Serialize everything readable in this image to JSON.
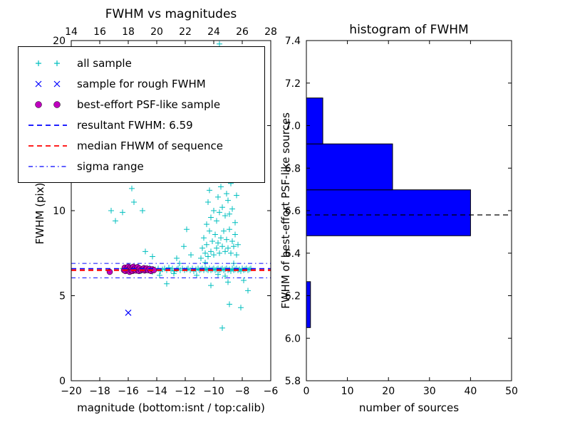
{
  "figure": {
    "background": "#ffffff"
  },
  "legend": {
    "items": [
      {
        "label": "all sample",
        "type": "scatter-plus",
        "color": "#00bfbf"
      },
      {
        "label": "sample for rough FWHM",
        "type": "scatter-x",
        "color": "#0000ff"
      },
      {
        "label": "best-effort PSF-like sample",
        "type": "scatter-circle",
        "color": "#bf00bf"
      },
      {
        "label": "resultant FWHM: 6.59",
        "type": "dashed-line",
        "color": "#0000ff"
      },
      {
        "label": "median FHWM of sequence",
        "type": "dashed-line",
        "color": "#ff0000"
      },
      {
        "label": "sigma range",
        "type": "dashdot-line",
        "color": "#0000ff"
      }
    ]
  },
  "chart_data": [
    {
      "type": "scatter",
      "title": "FWHM vs magnitudes",
      "xlabel": "magnitude (bottom:isnt / top:calib)",
      "ylabel": "FWHM (pix)",
      "xlim": [
        -20,
        -6
      ],
      "ylim": [
        0,
        20
      ],
      "x_tick_values": [
        -20,
        -18,
        -16,
        -14,
        -12,
        -10,
        -8,
        -6
      ],
      "x_tick_labels": [
        "−20",
        "−18",
        "−16",
        "−14",
        "−12",
        "−10",
        "−8",
        "−6"
      ],
      "y_tick_values": [
        0,
        5,
        10,
        15,
        20
      ],
      "y_tick_labels": [
        "0",
        "5",
        "10",
        "15",
        "20"
      ],
      "top_axis": {
        "lim": [
          14,
          28
        ],
        "tick_values": [
          14,
          16,
          18,
          20,
          22,
          24,
          26,
          28
        ],
        "tick_labels": [
          "14",
          "16",
          "18",
          "20",
          "22",
          "24",
          "26",
          "28"
        ]
      },
      "grid": false,
      "legend_position": "upper left",
      "hlines": [
        {
          "name": "median FHWM of sequence",
          "y": 6.5,
          "style": "dashed",
          "color": "#ff0000",
          "width": 2.2
        },
        {
          "name": "resultant FWHM",
          "y": 6.59,
          "style": "dashed",
          "color": "#0000ff",
          "width": 1.6
        },
        {
          "name": "sigma range upper",
          "y": 6.9,
          "style": "dashdot",
          "color": "#0000ff",
          "width": 1
        },
        {
          "name": "sigma range lower",
          "y": 6.05,
          "style": "dashdot",
          "color": "#0000ff",
          "width": 1
        }
      ],
      "series": [
        {
          "name": "all sample",
          "marker": "plus",
          "color": "#00bfbf",
          "points": [
            [
              -16.4,
              6.6
            ],
            [
              -16.2,
              6.5
            ],
            [
              -16.0,
              6.7
            ],
            [
              -15.9,
              6.4
            ],
            [
              -15.7,
              6.6
            ],
            [
              -15.5,
              6.5
            ],
            [
              -15.3,
              6.7
            ],
            [
              -15.1,
              6.45
            ],
            [
              -14.9,
              6.6
            ],
            [
              -14.7,
              6.5
            ],
            [
              -14.5,
              6.65
            ],
            [
              -14.3,
              6.4
            ],
            [
              -14.1,
              6.55
            ],
            [
              -13.9,
              6.6
            ],
            [
              -13.75,
              6.45
            ],
            [
              -13.6,
              6.55
            ],
            [
              -13.45,
              6.6
            ],
            [
              -13.3,
              6.5
            ],
            [
              -13.15,
              6.65
            ],
            [
              -13.0,
              6.5
            ],
            [
              -12.9,
              6.6
            ],
            [
              -12.75,
              6.45
            ],
            [
              -12.6,
              6.55
            ],
            [
              -12.5,
              6.6
            ],
            [
              -12.35,
              6.5
            ],
            [
              -12.2,
              6.6
            ],
            [
              -12.05,
              6.5
            ],
            [
              -11.9,
              6.55
            ],
            [
              -11.8,
              6.6
            ],
            [
              -11.65,
              6.5
            ],
            [
              -11.5,
              6.6
            ],
            [
              -11.4,
              6.45
            ],
            [
              -11.25,
              6.55
            ],
            [
              -11.1,
              6.6
            ],
            [
              -11.0,
              6.5
            ],
            [
              -10.9,
              6.55
            ],
            [
              -10.8,
              6.6
            ],
            [
              -10.7,
              6.5
            ],
            [
              -10.6,
              6.6
            ],
            [
              -10.5,
              6.55
            ],
            [
              -10.4,
              6.5
            ],
            [
              -10.3,
              6.6
            ],
            [
              -10.2,
              6.5
            ],
            [
              -10.1,
              6.55
            ],
            [
              -10.0,
              6.6
            ],
            [
              -9.9,
              6.5
            ],
            [
              -9.8,
              6.55
            ],
            [
              -9.7,
              6.6
            ],
            [
              -9.6,
              6.5
            ],
            [
              -9.5,
              6.55
            ],
            [
              -9.4,
              6.6
            ],
            [
              -9.3,
              6.5
            ],
            [
              -9.2,
              6.55
            ],
            [
              -9.1,
              6.6
            ],
            [
              -9.0,
              6.5
            ],
            [
              -8.9,
              6.55
            ],
            [
              -8.8,
              6.45
            ],
            [
              -8.7,
              6.6
            ],
            [
              -8.6,
              6.5
            ],
            [
              -8.5,
              6.55
            ],
            [
              -8.4,
              6.6
            ],
            [
              -8.3,
              6.5
            ],
            [
              -8.2,
              6.55
            ],
            [
              -8.1,
              6.45
            ],
            [
              -8.0,
              6.6
            ],
            [
              -7.9,
              6.5
            ],
            [
              -7.8,
              6.55
            ],
            [
              -7.7,
              6.6
            ],
            [
              -7.6,
              6.5
            ],
            [
              -7.5,
              6.55
            ],
            [
              -7.4,
              6.6
            ],
            [
              -12.4,
              6.9
            ],
            [
              -11.2,
              6.2
            ],
            [
              -10.6,
              6.95
            ],
            [
              -9.7,
              6.25
            ],
            [
              -8.6,
              6.9
            ],
            [
              -13.8,
              6.2
            ],
            [
              -12.8,
              6.3
            ],
            [
              -9.2,
              6.15
            ],
            [
              -10.9,
              7.2
            ],
            [
              -10.8,
              7.8
            ],
            [
              -10.7,
              8.4
            ],
            [
              -10.6,
              7.5
            ],
            [
              -10.5,
              9.2
            ],
            [
              -10.5,
              8.0
            ],
            [
              -10.4,
              10.5
            ],
            [
              -10.4,
              7.3
            ],
            [
              -10.3,
              8.8
            ],
            [
              -10.3,
              11.2
            ],
            [
              -10.2,
              7.6
            ],
            [
              -10.2,
              9.6
            ],
            [
              -10.1,
              8.2
            ],
            [
              -10.1,
              12.4
            ],
            [
              -10.0,
              7.4
            ],
            [
              -10.0,
              10.0
            ],
            [
              -10.0,
              13.5
            ],
            [
              -9.9,
              8.6
            ],
            [
              -9.9,
              11.8
            ],
            [
              -9.8,
              7.8
            ],
            [
              -9.8,
              9.4
            ],
            [
              -9.8,
              14.6
            ],
            [
              -9.7,
              8.1
            ],
            [
              -9.7,
              10.8
            ],
            [
              -9.7,
              12.9
            ],
            [
              -9.6,
              7.5
            ],
            [
              -9.6,
              9.9
            ],
            [
              -9.6,
              19.8
            ],
            [
              -9.5,
              8.4
            ],
            [
              -9.5,
              11.4
            ],
            [
              -9.5,
              13.8
            ],
            [
              -9.4,
              7.9
            ],
            [
              -9.4,
              10.2
            ],
            [
              -9.4,
              15.6
            ],
            [
              -9.3,
              8.8
            ],
            [
              -9.3,
              12.1
            ],
            [
              -9.2,
              7.6
            ],
            [
              -9.2,
              9.7
            ],
            [
              -9.2,
              14.1
            ],
            [
              -9.1,
              8.3
            ],
            [
              -9.1,
              11.0
            ],
            [
              -9.0,
              7.8
            ],
            [
              -9.0,
              10.6
            ],
            [
              -9.0,
              12.6
            ],
            [
              -8.9,
              8.9
            ],
            [
              -8.9,
              9.8
            ],
            [
              -8.8,
              7.5
            ],
            [
              -8.8,
              11.6
            ],
            [
              -8.7,
              8.2
            ],
            [
              -8.7,
              10.1
            ],
            [
              -8.6,
              7.9
            ],
            [
              -8.6,
              12.2
            ],
            [
              -8.5,
              8.6
            ],
            [
              -8.5,
              9.3
            ],
            [
              -8.4,
              7.4
            ],
            [
              -8.4,
              10.9
            ],
            [
              -8.3,
              8.0
            ],
            [
              -17.2,
              10.0
            ],
            [
              -16.9,
              9.4
            ],
            [
              -16.4,
              9.9
            ],
            [
              -15.75,
              11.3
            ],
            [
              -15.6,
              10.5
            ],
            [
              -15.0,
              10.0
            ],
            [
              -14.8,
              7.6
            ],
            [
              -14.3,
              7.3
            ],
            [
              -12.6,
              7.2
            ],
            [
              -12.1,
              7.9
            ],
            [
              -11.9,
              8.9
            ],
            [
              -11.6,
              7.4
            ],
            [
              -16.0,
              12.6
            ],
            [
              -15.6,
              13.4
            ],
            [
              -9.4,
              3.1
            ],
            [
              -8.9,
              4.5
            ],
            [
              -8.1,
              4.3
            ],
            [
              -13.3,
              5.7
            ],
            [
              -7.6,
              5.3
            ],
            [
              -10.2,
              5.6
            ],
            [
              -9.0,
              5.8
            ],
            [
              -7.9,
              5.9
            ]
          ]
        },
        {
          "name": "sample for rough FWHM",
          "marker": "x",
          "color": "#0000ff",
          "points": [
            [
              -16.0,
              4.0
            ]
          ]
        },
        {
          "name": "best-effort PSF-like sample",
          "marker": "circle",
          "color": "#bf00bf",
          "points": [
            [
              -17.3,
              6.4
            ],
            [
              -16.3,
              6.5
            ],
            [
              -16.25,
              6.65
            ],
            [
              -16.2,
              6.45
            ],
            [
              -16.1,
              6.6
            ],
            [
              -16.05,
              6.5
            ],
            [
              -16.0,
              6.7
            ],
            [
              -15.95,
              6.55
            ],
            [
              -15.9,
              6.4
            ],
            [
              -15.85,
              6.65
            ],
            [
              -15.8,
              6.5
            ],
            [
              -15.75,
              6.6
            ],
            [
              -15.7,
              6.45
            ],
            [
              -15.65,
              6.7
            ],
            [
              -15.6,
              6.55
            ],
            [
              -15.55,
              6.5
            ],
            [
              -15.5,
              6.62
            ],
            [
              -15.45,
              6.48
            ],
            [
              -15.4,
              6.58
            ],
            [
              -15.35,
              6.68
            ],
            [
              -15.3,
              6.52
            ],
            [
              -15.25,
              6.45
            ],
            [
              -15.2,
              6.6
            ],
            [
              -15.1,
              6.5
            ],
            [
              -15.0,
              6.55
            ],
            [
              -14.9,
              6.62
            ],
            [
              -14.85,
              6.48
            ],
            [
              -14.8,
              6.55
            ],
            [
              -14.7,
              6.6
            ],
            [
              -14.6,
              6.5
            ],
            [
              -14.5,
              6.57
            ],
            [
              -14.4,
              6.45
            ],
            [
              -14.3,
              6.55
            ],
            [
              -14.2,
              6.5
            ]
          ]
        }
      ]
    },
    {
      "type": "bar",
      "orientation": "horizontal",
      "title": "histogram of FWHM",
      "xlabel": "number of sources",
      "ylabel": "FWHM of best-effort PSF-like sources",
      "xlim": [
        0,
        50
      ],
      "ylim": [
        5.8,
        7.4
      ],
      "x_tick_values": [
        0,
        10,
        20,
        30,
        40,
        50
      ],
      "x_tick_labels": [
        "0",
        "10",
        "20",
        "30",
        "40",
        "50"
      ],
      "y_tick_values": [
        5.8,
        6.0,
        6.2,
        6.4,
        6.6,
        6.8,
        7.0,
        7.2,
        7.4
      ],
      "y_tick_labels": [
        "5.8",
        "6.0",
        "6.2",
        "6.4",
        "6.6",
        "6.8",
        "7.0",
        "7.2",
        "7.4"
      ],
      "grid": false,
      "bar_color": "#0000ff",
      "bins": [
        {
          "lo": 6.05,
          "hi": 6.266,
          "count": 1
        },
        {
          "lo": 6.266,
          "hi": 6.482,
          "count": 0
        },
        {
          "lo": 6.482,
          "hi": 6.698,
          "count": 40
        },
        {
          "lo": 6.698,
          "hi": 6.914,
          "count": 21
        },
        {
          "lo": 6.914,
          "hi": 7.13,
          "count": 4
        }
      ],
      "median_line": {
        "y": 6.58,
        "style": "dashed",
        "color": "#000000"
      }
    }
  ]
}
